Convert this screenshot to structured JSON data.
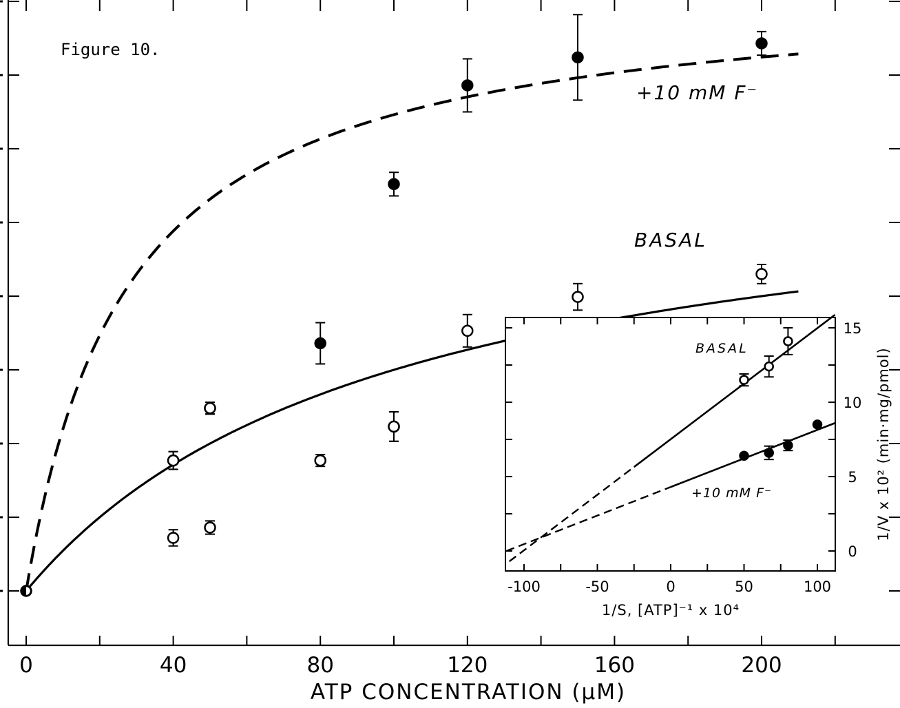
{
  "figure_label": "Figure 10.",
  "chart_data": [
    {
      "type": "scatter",
      "title": "",
      "xlabel": "ATP CONCENTRATION (μM)",
      "ylabel": "",
      "xlim": [
        0,
        220
      ],
      "xticks": [
        0,
        40,
        80,
        120,
        160,
        200
      ],
      "ylim": [
        0,
        8
      ],
      "y_tick_labels_visible": false,
      "grid": false,
      "series": [
        {
          "name": "+10 mM F⁻",
          "marker": "filled-circle",
          "line": "dashed",
          "fit_curve": {
            "vmax": 8.24,
            "km": 27.5
          },
          "x": [
            0,
            40,
            50,
            80,
            100,
            120,
            150,
            200
          ],
          "y": [
            0,
            1.77,
            2.48,
            3.36,
            5.52,
            6.86,
            7.24,
            7.43
          ],
          "err": [
            0,
            0.12,
            0.08,
            0.28,
            0.16,
            0.36,
            0.58,
            0.16
          ]
        },
        {
          "name": "BASAL",
          "marker": "open-circle",
          "line": "solid",
          "fit_curve": {
            "vmax": 6.0,
            "km": 100
          },
          "x": [
            0,
            40,
            50,
            100,
            120,
            150,
            200
          ],
          "y": [
            0,
            1.77,
            2.48,
            2.23,
            3.53,
            3.99,
            4.3
          ],
          "err": [
            0,
            0.12,
            0.08,
            0.2,
            0.22,
            0.18,
            0.13
          ]
        },
        {
          "name": "",
          "marker": "open-circle",
          "line": "none",
          "x": [
            40,
            50,
            80,
            100
          ],
          "y": [
            0.72,
            0.86,
            1.77,
            2.23
          ],
          "err": [
            0.11,
            0.09,
            0.08,
            0.2
          ]
        }
      ],
      "annotations": [
        "+10 mM F⁻",
        "BASAL"
      ]
    },
    {
      "type": "scatter",
      "title": "",
      "xlabel": "1/S, [ATP]⁻¹ x 10⁴",
      "ylabel": "1/V x 10² (min·mg/pmol)",
      "xlim": [
        -112,
        113
      ],
      "ylim": [
        -1.4,
        15.8
      ],
      "xticks": [
        -100,
        -50,
        0,
        50,
        100
      ],
      "yticks": [
        0,
        5,
        10,
        15
      ],
      "grid": false,
      "series": [
        {
          "name": "BASAL",
          "marker": "open-circle",
          "fit_line": {
            "x0": -110,
            "y0": -0.7,
            "x1": 115,
            "y1": 16.1,
            "dashed_until": -25
          },
          "x": [
            50,
            67,
            80
          ],
          "y": [
            11.5,
            12.4,
            14.1
          ],
          "err": [
            0.4,
            0.7,
            0.9
          ]
        },
        {
          "name": "+10 mM F⁻",
          "marker": "filled-circle",
          "fit_line": {
            "x0": -112,
            "y0": 0.0,
            "x1": 112,
            "y1": 8.6,
            "dashed_until": 0
          },
          "x": [
            50,
            67,
            80,
            100
          ],
          "y": [
            6.4,
            6.6,
            7.1,
            8.5
          ],
          "err": [
            0,
            0.45,
            0.35,
            0
          ]
        }
      ],
      "annotations": [
        "BASAL",
        "+10 mM F⁻"
      ]
    }
  ]
}
